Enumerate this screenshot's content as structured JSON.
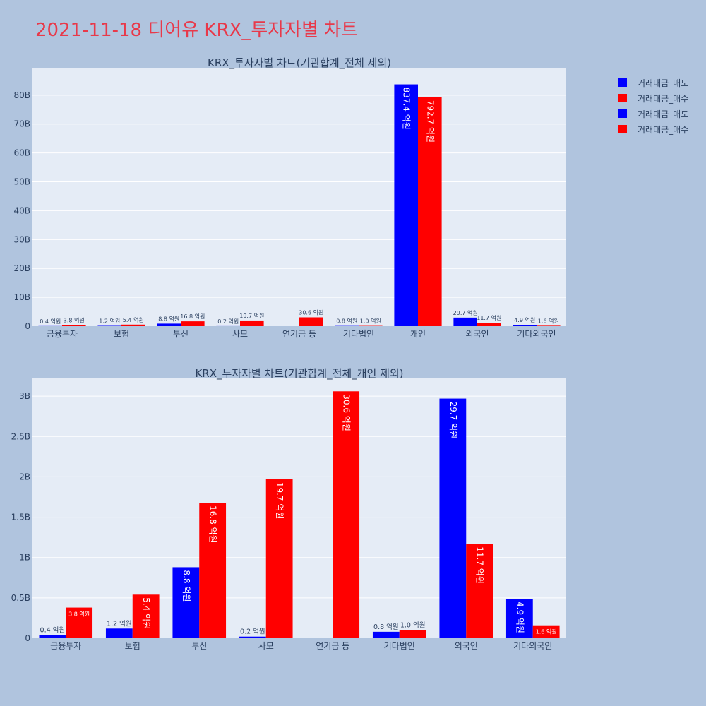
{
  "title": "2021-11-18 디어유 KRX_투자자별 차트",
  "legend": [
    {
      "label": "거래대금_매도",
      "color": "#0000ff"
    },
    {
      "label": "거래대금_매수",
      "color": "#ff0000"
    },
    {
      "label": "거래대금_매도",
      "color": "#0000ff"
    },
    {
      "label": "거래대금_매수",
      "color": "#ff0000"
    }
  ],
  "colors": {
    "sell": "#0000ff",
    "buy": "#ff0000",
    "plot_bg": "#e5ecf6",
    "page_bg": "#b0c4de",
    "title": "#e8394a"
  },
  "chart_data": [
    {
      "type": "bar",
      "title": "KRX_투자자별 차트(기관합계_전체 제외)",
      "categories": [
        "금융투자",
        "보험",
        "투신",
        "사모",
        "연기금 등",
        "기타법인",
        "개인",
        "외국인",
        "기타외국인"
      ],
      "series": [
        {
          "name": "거래대금_매도",
          "values": [
            0.04,
            0.12,
            0.88,
            0.02,
            0,
            0.08,
            83.74,
            2.97,
            0.49
          ],
          "labels": [
            "0.4 억원",
            "1.2 억원",
            "8.8 억원",
            "0.2 억원",
            "",
            "0.8 억원",
            "837.4 억원",
            "29.7 억원",
            "4.9 억원"
          ]
        },
        {
          "name": "거래대금_매수",
          "values": [
            0.38,
            0.54,
            1.68,
            1.97,
            3.06,
            0.1,
            79.27,
            1.17,
            0.16
          ],
          "labels": [
            "3.8 억원",
            "5.4 억원",
            "16.8 억원",
            "19.7 억원",
            "30.6 억원",
            "1.0 억원",
            "792.7 억원",
            "11.7 억원",
            "1.6 억원"
          ]
        }
      ],
      "ylim": [
        0,
        89.5
      ],
      "yticks": [
        0,
        10,
        20,
        30,
        40,
        50,
        60,
        70,
        80
      ],
      "ytick_labels": [
        "0",
        "10B",
        "20B",
        "30B",
        "40B",
        "50B",
        "60B",
        "70B",
        "80B"
      ],
      "grid": true
    },
    {
      "type": "bar",
      "title": "KRX_투자자별 차트(기관합계_전체_개인 제외)",
      "categories": [
        "금융투자",
        "보험",
        "투신",
        "사모",
        "연기금 등",
        "기타법인",
        "외국인",
        "기타외국인"
      ],
      "series": [
        {
          "name": "거래대금_매도",
          "values": [
            0.04,
            0.12,
            0.88,
            0.02,
            0,
            0.08,
            2.97,
            0.49
          ],
          "labels": [
            "0.4 억원",
            "1.2 억원",
            "8.8 억원",
            "0.2 억원",
            "",
            "0.8 억원",
            "29.7 억원",
            "4.9 억원"
          ]
        },
        {
          "name": "거래대금_매수",
          "values": [
            0.38,
            0.54,
            1.68,
            1.97,
            3.06,
            0.1,
            1.17,
            0.16
          ],
          "labels": [
            "3.8 억원",
            "5.4 억원",
            "16.8 억원",
            "19.7 억원",
            "30.6 억원",
            "1.0 억원",
            "11.7 억원",
            "1.6 억원"
          ]
        }
      ],
      "ylim": [
        0,
        3.22
      ],
      "yticks": [
        0,
        0.5,
        1,
        1.5,
        2,
        2.5,
        3
      ],
      "ytick_labels": [
        "0",
        "0.5B",
        "1B",
        "1.5B",
        "2B",
        "2.5B",
        "3B"
      ],
      "grid": true
    }
  ]
}
